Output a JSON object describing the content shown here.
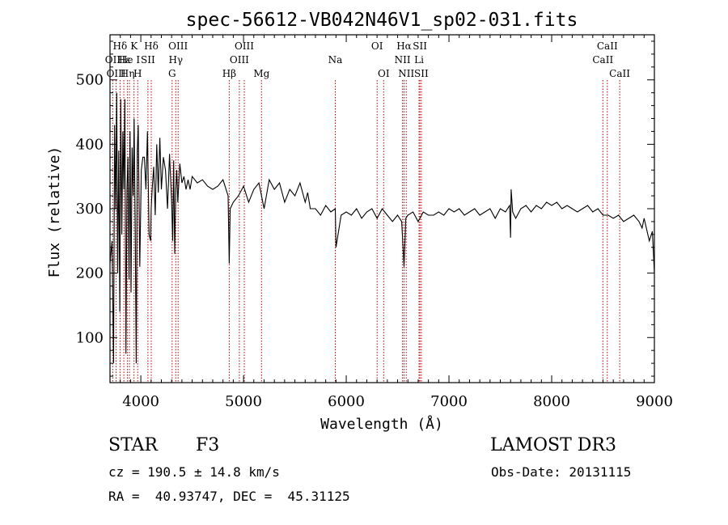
{
  "chart_data": {
    "type": "line",
    "title": "spec-56612-VB042N46V1_sp02-031.fits",
    "xlabel": "Wavelength (Å)",
    "ylabel": "Flux (relative)",
    "xlim": [
      3700,
      9000
    ],
    "ylim": [
      30,
      570
    ],
    "x_ticks": [
      4000,
      5000,
      6000,
      7000,
      8000,
      9000
    ],
    "x_tick_labels": [
      "4000",
      "5000",
      "6000",
      "7000",
      "8000",
      "9000"
    ],
    "y_ticks": [
      100,
      200,
      300,
      400,
      500
    ],
    "y_tick_labels": [
      "100",
      "200",
      "300",
      "400",
      "500"
    ],
    "grid": false,
    "series": [
      {
        "name": "flux",
        "x": [
          3700,
          3720,
          3735,
          3745,
          3755,
          3765,
          3775,
          3785,
          3795,
          3805,
          3815,
          3825,
          3835,
          3845,
          3855,
          3865,
          3875,
          3885,
          3895,
          3905,
          3915,
          3925,
          3935,
          3945,
          3955,
          3965,
          3975,
          3990,
          4005,
          4020,
          4035,
          4050,
          4065,
          4080,
          4095,
          4101,
          4110,
          4125,
          4140,
          4155,
          4170,
          4185,
          4200,
          4220,
          4240,
          4260,
          4280,
          4300,
          4310,
          4320,
          4330,
          4340,
          4350,
          4360,
          4380,
          4400,
          4420,
          4440,
          4460,
          4480,
          4500,
          4550,
          4600,
          4650,
          4700,
          4750,
          4800,
          4850,
          4861,
          4870,
          4900,
          4950,
          5000,
          5050,
          5100,
          5150,
          5200,
          5250,
          5300,
          5350,
          5400,
          5450,
          5500,
          5550,
          5600,
          5625,
          5650,
          5700,
          5750,
          5800,
          5850,
          5893,
          5900,
          5950,
          6000,
          6050,
          6100,
          6150,
          6200,
          6250,
          6300,
          6350,
          6400,
          6450,
          6500,
          6540,
          6563,
          6580,
          6600,
          6650,
          6700,
          6750,
          6800,
          6850,
          6900,
          6950,
          7000,
          7050,
          7100,
          7150,
          7200,
          7250,
          7300,
          7350,
          7400,
          7450,
          7500,
          7550,
          7590,
          7600,
          7605,
          7620,
          7650,
          7700,
          7750,
          7800,
          7850,
          7900,
          7950,
          8000,
          8050,
          8100,
          8150,
          8200,
          8250,
          8300,
          8350,
          8400,
          8450,
          8500,
          8550,
          8600,
          8650,
          8700,
          8750,
          8800,
          8850,
          8880,
          8900,
          8950,
          8980,
          9000
        ],
        "y": [
          215,
          250,
          60,
          430,
          300,
          480,
          200,
          390,
          140,
          470,
          260,
          420,
          330,
          470,
          75,
          330,
          380,
          190,
          420,
          170,
          395,
          320,
          440,
          280,
          60,
          390,
          430,
          210,
          360,
          380,
          380,
          330,
          420,
          260,
          250,
          300,
          330,
          365,
          290,
          400,
          325,
          410,
          330,
          380,
          360,
          300,
          385,
          310,
          250,
          375,
          230,
          330,
          360,
          310,
          370,
          340,
          350,
          330,
          345,
          330,
          350,
          340,
          345,
          335,
          330,
          335,
          345,
          320,
          215,
          300,
          310,
          320,
          335,
          310,
          330,
          340,
          300,
          345,
          330,
          340,
          310,
          330,
          320,
          340,
          310,
          325,
          300,
          300,
          290,
          305,
          295,
          300,
          240,
          290,
          295,
          290,
          300,
          285,
          295,
          300,
          285,
          300,
          290,
          280,
          290,
          280,
          210,
          285,
          290,
          295,
          280,
          295,
          290,
          290,
          295,
          290,
          300,
          295,
          300,
          290,
          295,
          300,
          290,
          295,
          300,
          285,
          300,
          295,
          305,
          255,
          330,
          295,
          285,
          300,
          305,
          295,
          305,
          300,
          310,
          305,
          310,
          300,
          305,
          300,
          295,
          300,
          305,
          295,
          300,
          290,
          290,
          285,
          290,
          280,
          285,
          290,
          280,
          270,
          285,
          250,
          265,
          200
        ]
      }
    ],
    "lines": [
      {
        "label": "Hδ",
        "wavelength": 3798,
        "row": 1
      },
      {
        "label": "OII",
        "wavelength": 3727,
        "row": 2
      },
      {
        "label": "OIII",
        "wavelength": 3760,
        "row": 3
      },
      {
        "label": "Hε",
        "wavelength": 3835,
        "row": 2
      },
      {
        "label": "Hη",
        "wavelength": 3870,
        "row": 3
      },
      {
        "label": "K",
        "wavelength": 3934,
        "row": 1
      },
      {
        "label": "He I",
        "wavelength": 3889,
        "row": 2
      },
      {
        "label": "SII",
        "wavelength": 4069,
        "row": 2
      },
      {
        "label": "H",
        "wavelength": 3969,
        "row": 3
      },
      {
        "label": "Hδ",
        "wavelength": 4102,
        "row": 1
      },
      {
        "label": "OIII",
        "wavelength": 4363,
        "row": 1
      },
      {
        "label": "Hγ",
        "wavelength": 4340,
        "row": 2
      },
      {
        "label": "G",
        "wavelength": 4305,
        "row": 3
      },
      {
        "label": "Hβ",
        "wavelength": 4861,
        "row": 3
      },
      {
        "label": "OIII",
        "wavelength": 5007,
        "row": 1
      },
      {
        "label": "OIII",
        "wavelength": 4959,
        "row": 2
      },
      {
        "label": "Mg",
        "wavelength": 5175,
        "row": 3
      },
      {
        "label": "Na",
        "wavelength": 5893,
        "row": 2
      },
      {
        "label": "OI",
        "wavelength": 6300,
        "row": 1
      },
      {
        "label": "OI",
        "wavelength": 6364,
        "row": 3
      },
      {
        "label": "Hα",
        "wavelength": 6563,
        "row": 1
      },
      {
        "label": "NII",
        "wavelength": 6548,
        "row": 2
      },
      {
        "label": "NII",
        "wavelength": 6584,
        "row": 3
      },
      {
        "label": "SII",
        "wavelength": 6717,
        "row": 1
      },
      {
        "label": "Li",
        "wavelength": 6708,
        "row": 2
      },
      {
        "label": "SII",
        "wavelength": 6731,
        "row": 3
      },
      {
        "label": "CaII",
        "wavelength": 8542,
        "row": 1
      },
      {
        "label": "CaII",
        "wavelength": 8498,
        "row": 2
      },
      {
        "label": "CaII",
        "wavelength": 8662,
        "row": 3
      }
    ]
  },
  "info": {
    "object_type": "STAR",
    "subclass": "F3",
    "survey": "LAMOST DR3",
    "cz": "cz = 190.5 ± 14.8 km/s",
    "obs_date": "Obs-Date: 20131115",
    "coords": "RA =  40.93747, DEC =  45.31125"
  }
}
